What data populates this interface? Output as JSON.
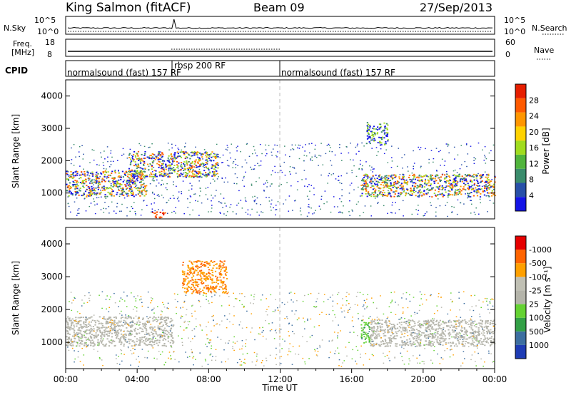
{
  "header": {
    "station": "King Salmon (fitACF)",
    "beam": "Beam 09",
    "date": "27/Sep/2013"
  },
  "status_panels": {
    "nsky": {
      "label": "N.Sky",
      "left_ticks": [
        "10^5",
        "10^0"
      ],
      "right_label": "N.Search",
      "right_ticks": [
        "10^5",
        "10^0"
      ]
    },
    "freq": {
      "label_lines": [
        "Freq.",
        "[MHz]"
      ],
      "left_ticks": [
        "18",
        "8"
      ],
      "right_label": "Nave",
      "right_ticks": [
        "60",
        "0"
      ]
    },
    "cpid": {
      "label": "CPID",
      "segments": [
        {
          "text": "normalsound (fast) 157 RF",
          "start_ut": 0,
          "end_ut": 6
        },
        {
          "text": "rbsp 200 RF",
          "start_ut": 6,
          "end_ut": 12
        },
        {
          "text": "normalsound (fast) 157 RF",
          "start_ut": 12,
          "end_ut": 24
        }
      ]
    }
  },
  "chart_data": [
    {
      "type": "heatmap",
      "panel": "power",
      "ylabel": "Slant Range [km]",
      "yticks": [
        "1000",
        "2000",
        "3000",
        "4000"
      ],
      "ylim": [
        200,
        4500
      ],
      "xlim": [
        0,
        24
      ],
      "colorbar": {
        "label": "Power [dB]",
        "ticks": [
          "4",
          "8",
          "12",
          "16",
          "20",
          "24",
          "28"
        ],
        "colors": [
          "#1414e6",
          "#2850a8",
          "#3a8c6c",
          "#50b43c",
          "#a0dc1e",
          "#ffd200",
          "#ff9600",
          "#ff5a00",
          "#e61e00"
        ]
      },
      "echo_regions": [
        {
          "start_ut": 0.0,
          "end_ut": 4.5,
          "range_lo": 900,
          "range_hi": 1700,
          "level": "strong"
        },
        {
          "start_ut": 3.5,
          "end_ut": 8.5,
          "range_lo": 1500,
          "range_hi": 2300,
          "level": "strong"
        },
        {
          "start_ut": 4.8,
          "end_ut": 5.6,
          "range_lo": 250,
          "range_hi": 450,
          "level": "very strong"
        },
        {
          "start_ut": 16.5,
          "end_ut": 24.0,
          "range_lo": 900,
          "range_hi": 1600,
          "level": "strong"
        },
        {
          "start_ut": 16.8,
          "end_ut": 18.0,
          "range_lo": 2500,
          "range_hi": 3200,
          "level": "moderate"
        }
      ]
    },
    {
      "type": "heatmap",
      "panel": "velocity",
      "ylabel": "Slant Range [km]",
      "yticks": [
        "1000",
        "2000",
        "3000",
        "4000"
      ],
      "ylim": [
        200,
        4500
      ],
      "xlim": [
        0,
        24
      ],
      "xticks": [
        "00:00",
        "04:00",
        "08:00",
        "12:00",
        "16:00",
        "20:00",
        "00:00"
      ],
      "xlabel": "Time UT",
      "colorbar": {
        "label": "Velocity [m s⁻¹]",
        "ticks": [
          "1000",
          "500",
          "100",
          "25",
          "-25",
          "-100",
          "-500",
          "-1000"
        ],
        "colors": [
          "#1e3cb4",
          "#3c6ea0",
          "#32a046",
          "#64d232",
          "#b4b4aa",
          "#c0c0b4",
          "#ffa000",
          "#ff6400",
          "#e60000"
        ]
      },
      "echo_regions": [
        {
          "start_ut": 0.0,
          "end_ut": 6.0,
          "range_lo": 900,
          "range_hi": 1800,
          "velocity_class": "ground scatter"
        },
        {
          "start_ut": 6.5,
          "end_ut": 9.0,
          "range_lo": 2500,
          "range_hi": 3500,
          "velocity_class": "-100 to -500"
        },
        {
          "start_ut": 16.5,
          "end_ut": 17.0,
          "range_lo": 1000,
          "range_hi": 1700,
          "velocity_class": "100"
        },
        {
          "start_ut": 17.0,
          "end_ut": 24.0,
          "range_lo": 900,
          "range_hi": 1700,
          "velocity_class": "ground scatter"
        }
      ]
    }
  ]
}
